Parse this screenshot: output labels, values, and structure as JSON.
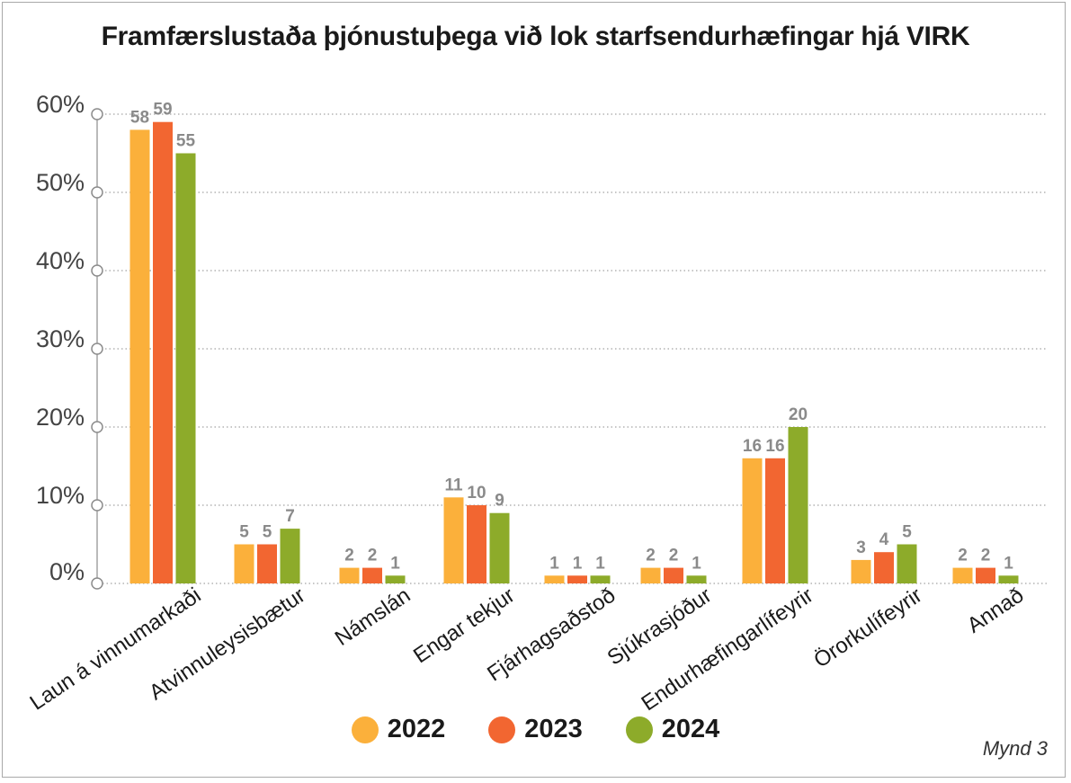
{
  "chart_data": {
    "type": "bar",
    "title": "Framfærslustaða þjónustuþega við lok starfsendurhæfingar hjá VIRK",
    "categories": [
      "Laun á vinnumarkaði",
      "Atvinnuleysisbætur",
      "Námslán",
      "Engar tekjur",
      "Fjárhagsaðstoð",
      "Sjúkrasjóður",
      "Endurhæfingarlífeyrir",
      "Örorkulífeyrir",
      "Annað"
    ],
    "series": [
      {
        "name": "2022",
        "color": "#fbb03b",
        "values": [
          58,
          5,
          2,
          11,
          1,
          2,
          16,
          3,
          2
        ]
      },
      {
        "name": "2023",
        "color": "#f26631",
        "values": [
          59,
          5,
          2,
          10,
          1,
          2,
          16,
          4,
          2
        ]
      },
      {
        "name": "2024",
        "color": "#8dab2a",
        "values": [
          55,
          7,
          1,
          9,
          1,
          1,
          20,
          5,
          1
        ]
      }
    ],
    "y_ticks": [
      "0%",
      "10%",
      "20%",
      "30%",
      "40%",
      "50%",
      "60%"
    ],
    "ylim": [
      0,
      60
    ],
    "grid": true,
    "legend": "bottom"
  },
  "legend": {
    "items": [
      "2022",
      "2023",
      "2024"
    ]
  },
  "caption": "Mynd 3"
}
